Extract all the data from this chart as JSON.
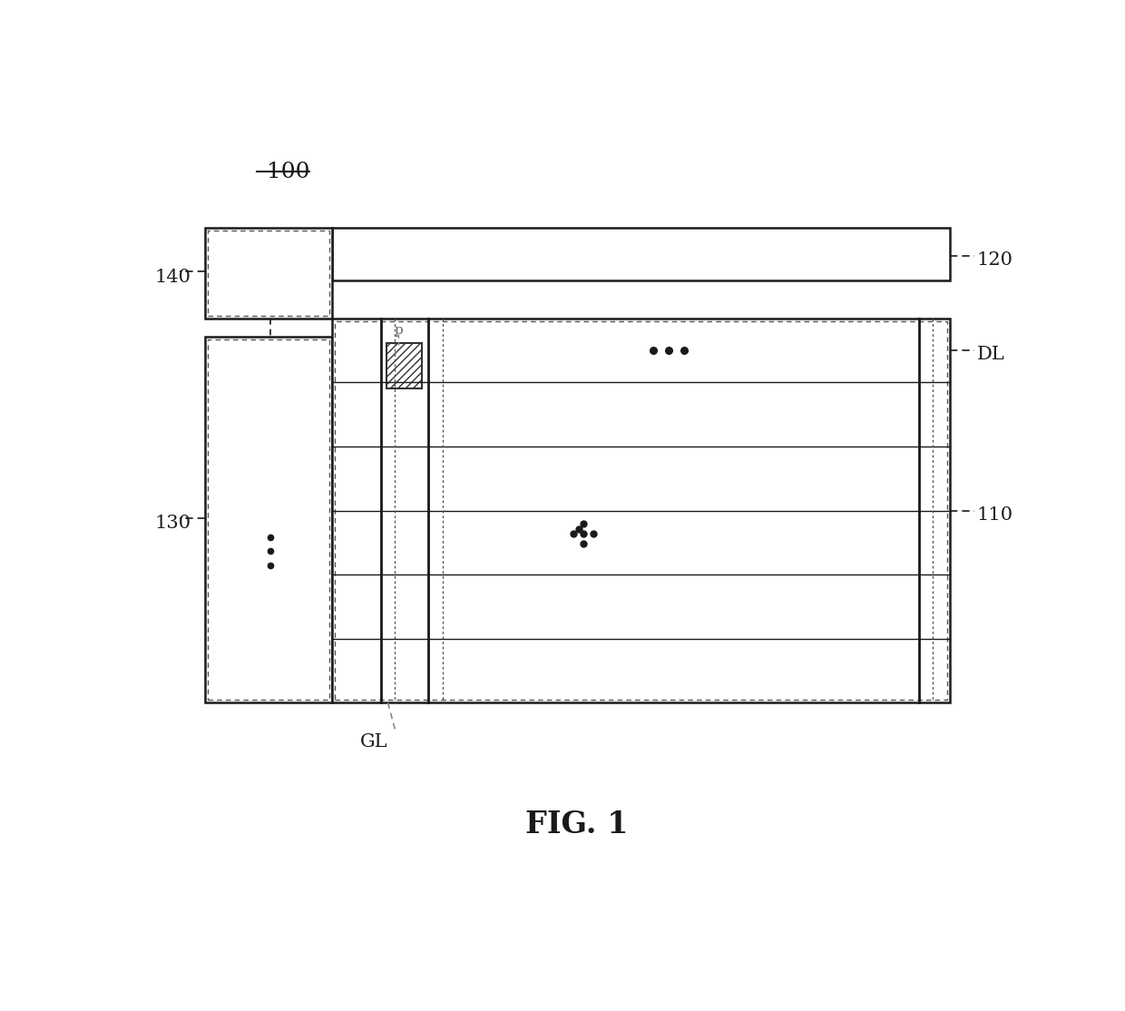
{
  "bg_color": "#ffffff",
  "fig_label": "FIG. 1",
  "label_100": "100",
  "label_120": "120",
  "label_130": "130",
  "label_140": "140",
  "label_DL": "DL",
  "label_GL": "GL",
  "label_110": "110",
  "label_p": "p",
  "line_color": "#1a1a1a",
  "dot_color": "#111111"
}
